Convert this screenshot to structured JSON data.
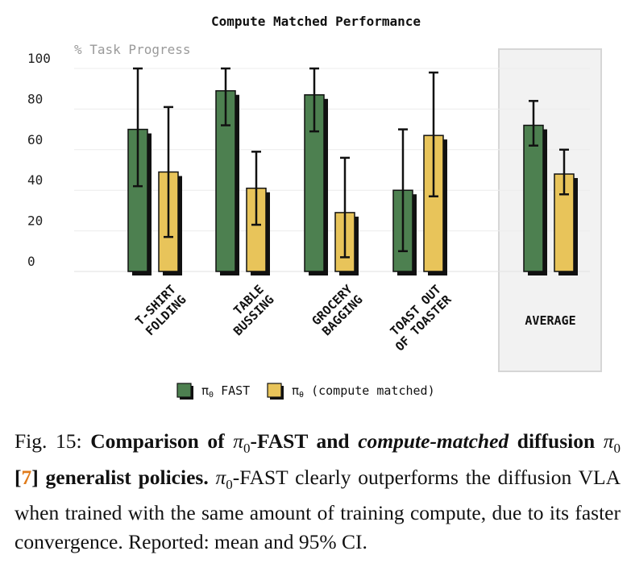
{
  "figure": {
    "chart_data": {
      "type": "bar",
      "title": "Compute Matched Performance",
      "ylabel": "% Task Progress",
      "ylim": [
        0,
        100
      ],
      "yticks": [
        "0",
        "20",
        "40",
        "60",
        "80",
        "100"
      ],
      "grid": true,
      "legend_position": "bottom",
      "categories": [
        [
          "T-SHIRT",
          "FOLDING"
        ],
        [
          "TABLE",
          "BUSSING"
        ],
        [
          "GROCERY",
          "BAGGING"
        ],
        [
          "TOAST OUT",
          "OF TOASTER"
        ],
        [
          "AVERAGE"
        ]
      ],
      "series": [
        {
          "name": "FAST",
          "legend_symbol": "π",
          "legend_sub": "0",
          "color": "#4d8050",
          "values": [
            70,
            89,
            87,
            40,
            72
          ],
          "ci_low": [
            42,
            72,
            69,
            10,
            62
          ],
          "ci_high": [
            100,
            100,
            100,
            70,
            84
          ]
        },
        {
          "name": "(compute matched)",
          "legend_symbol": "π",
          "legend_sub": "θ",
          "color": "#e8c45a",
          "values": [
            49,
            41,
            29,
            67,
            48
          ],
          "ci_low": [
            17,
            23,
            7,
            37,
            38
          ],
          "ci_high": [
            81,
            59,
            56,
            98,
            60
          ]
        }
      ]
    }
  },
  "caption": {
    "figlabel": "Fig. 15:",
    "bold_a": "Comparison of",
    "pi_a": "π",
    "sub_a": "0",
    "bold_b": "-FAST and",
    "bold_italic": "compute-matched",
    "bold_c": "diffusion",
    "pi_b": "π",
    "sub_b": "0",
    "ref": "7",
    "bold_d": "generalist policies.",
    "pi_c": "π",
    "sub_c": "0",
    "body": "-FAST clearly outperforms the diffusion VLA when trained with the same amount of training compute, due to its faster convergence. Reported: mean and 95% CI."
  }
}
